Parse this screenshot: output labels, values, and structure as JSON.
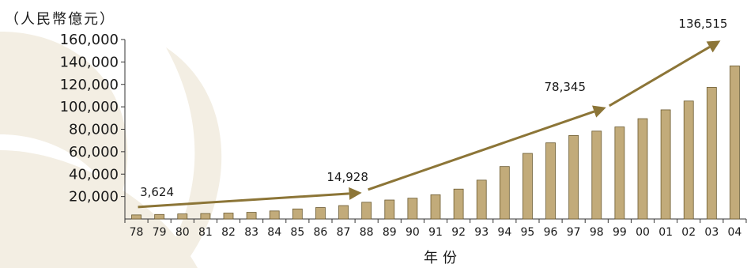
{
  "chart_data": {
    "type": "bar",
    "unit_label": "（人民幣億元）",
    "xlabel": "年份",
    "ylim": [
      0,
      160000
    ],
    "yticks": [
      20000,
      40000,
      60000,
      80000,
      100000,
      120000,
      140000,
      160000
    ],
    "ytick_labels": [
      "20,000",
      "40,000",
      "60,000",
      "80,000",
      "100,000",
      "120,000",
      "140,000",
      "160,000"
    ],
    "categories": [
      "78",
      "79",
      "80",
      "81",
      "82",
      "83",
      "84",
      "85",
      "86",
      "87",
      "88",
      "89",
      "90",
      "91",
      "92",
      "93",
      "94",
      "95",
      "96",
      "97",
      "98",
      "99",
      "00",
      "01",
      "02",
      "03",
      "04"
    ],
    "values": [
      3624,
      4038,
      4518,
      4862,
      5295,
      5935,
      7171,
      8964,
      10202,
      11963,
      14928,
      16909,
      18548,
      21618,
      26638,
      34634,
      46759,
      58478,
      67885,
      74463,
      78345,
      82068,
      89442,
      97315,
      105172,
      117390,
      136515
    ],
    "annotations": [
      {
        "label": "3,624",
        "category": "78"
      },
      {
        "label": "14,928",
        "category": "88"
      },
      {
        "label": "78,345",
        "category": "98"
      },
      {
        "label": "136,515",
        "category": "04"
      }
    ],
    "colors": {
      "bar_fill": "#c2ab7a",
      "bar_stroke": "#6b5a30",
      "arrow": "#8c7537",
      "watermark": "#f3eee3"
    },
    "grid": false,
    "legend": "none"
  }
}
